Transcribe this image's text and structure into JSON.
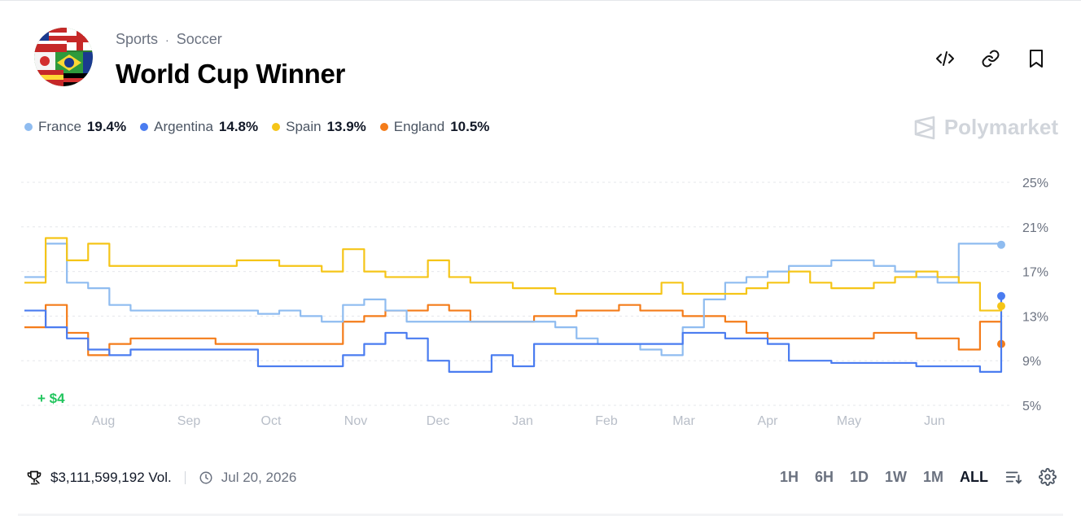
{
  "header": {
    "breadcrumb": [
      "Sports",
      "Soccer"
    ],
    "title": "World Cup Winner"
  },
  "actions": [
    {
      "name": "embed-code-icon"
    },
    {
      "name": "link-icon"
    },
    {
      "name": "bookmark-icon"
    }
  ],
  "brand": "Polymarket",
  "chart_data": {
    "type": "line",
    "x_ticks": [
      "Aug",
      "Sep",
      "Oct",
      "Nov",
      "Dec",
      "Jan",
      "Feb",
      "Mar",
      "Apr",
      "May",
      "Jun"
    ],
    "y_ticks": [
      "25%",
      "21%",
      "17%",
      "13%",
      "9%",
      "5%"
    ],
    "ylim": [
      5,
      25
    ],
    "grid": true,
    "legend_position": "top-left",
    "annotation": "+ $4",
    "series": [
      {
        "name": "France",
        "label": "19.4%",
        "color": "#8fbcf0",
        "values": [
          16.5,
          19.5,
          16.0,
          15.5,
          14.0,
          13.5,
          13.5,
          13.5,
          13.5,
          13.5,
          13.5,
          13.2,
          13.5,
          13.0,
          12.5,
          14.0,
          14.5,
          13.5,
          12.5,
          12.5,
          12.5,
          12.5,
          12.5,
          12.5,
          12.5,
          12.0,
          11.0,
          10.5,
          10.5,
          10.0,
          9.5,
          12.0,
          14.5,
          16.0,
          16.5,
          17.0,
          17.5,
          17.5,
          18.0,
          18.0,
          17.5,
          17.0,
          16.5,
          16.0,
          19.5,
          19.5,
          19.4
        ]
      },
      {
        "name": "Argentina",
        "label": "14.8%",
        "color": "#4a7cf0",
        "values": [
          13.5,
          12.0,
          11.0,
          10.0,
          9.5,
          10.0,
          10.0,
          10.0,
          10.0,
          10.0,
          10.0,
          8.5,
          8.5,
          8.5,
          8.5,
          9.5,
          10.5,
          11.5,
          11.0,
          9.0,
          8.0,
          8.0,
          9.5,
          8.5,
          10.5,
          10.5,
          10.5,
          10.5,
          10.5,
          10.5,
          10.5,
          11.5,
          11.5,
          11.0,
          11.0,
          10.5,
          9.0,
          9.0,
          8.8,
          8.8,
          8.8,
          8.8,
          8.5,
          8.5,
          8.5,
          8.0,
          14.8
        ]
      },
      {
        "name": "Spain",
        "label": "13.9%",
        "color": "#f5c518",
        "values": [
          16.0,
          20.0,
          18.0,
          19.5,
          17.5,
          17.5,
          17.5,
          17.5,
          17.5,
          17.5,
          18.0,
          18.0,
          17.5,
          17.5,
          17.0,
          19.0,
          17.0,
          16.5,
          16.5,
          18.0,
          16.5,
          16.0,
          16.0,
          15.5,
          15.5,
          15.0,
          15.0,
          15.0,
          15.0,
          15.0,
          16.0,
          15.0,
          15.0,
          15.0,
          15.5,
          16.0,
          17.0,
          16.0,
          15.5,
          15.5,
          16.0,
          16.5,
          17.0,
          16.5,
          16.0,
          13.5,
          13.9
        ]
      },
      {
        "name": "England",
        "label": "10.5%",
        "color": "#f47c1a",
        "values": [
          12.0,
          14.0,
          11.5,
          9.5,
          10.5,
          11.0,
          11.0,
          11.0,
          11.0,
          10.5,
          10.5,
          10.5,
          10.5,
          10.5,
          10.5,
          12.5,
          13.0,
          13.5,
          13.5,
          14.0,
          13.5,
          12.5,
          12.5,
          12.5,
          13.0,
          13.0,
          13.5,
          13.5,
          14.0,
          13.5,
          13.5,
          13.0,
          13.0,
          12.5,
          11.5,
          11.0,
          11.0,
          11.0,
          11.0,
          11.0,
          11.5,
          11.5,
          11.0,
          11.0,
          10.0,
          12.5,
          10.5
        ]
      }
    ]
  },
  "footer": {
    "volume": "$3,111,599,192 Vol.",
    "date": "Jul 20, 2026",
    "ranges": [
      "1H",
      "6H",
      "1D",
      "1W",
      "1M",
      "ALL"
    ],
    "active_range": "ALL"
  }
}
